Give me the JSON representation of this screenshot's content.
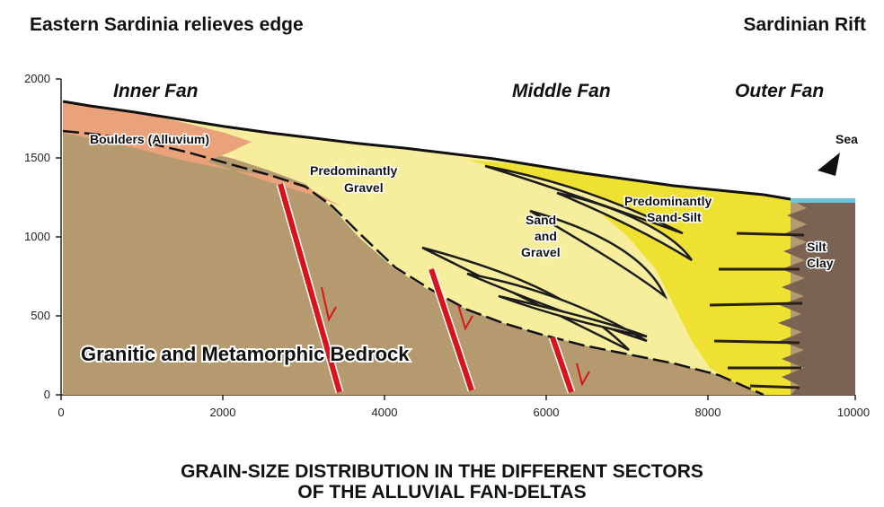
{
  "header": {
    "left_title": "Eastern Sardinia relieves edge",
    "right_title": "Sardinian Rift"
  },
  "zones": {
    "inner": "Inner Fan",
    "middle": "Middle Fan",
    "outer": "Outer Fan"
  },
  "labels": {
    "boulders": "Boulders (Alluvium)",
    "gravel_1": "Predominantly",
    "gravel_2": "Gravel",
    "sandgravel_1": "Sand",
    "sandgravel_2": "and",
    "sandgravel_3": "Gravel",
    "sandsilt_1": "Predominantly",
    "sandsilt_2": "Sand-Silt",
    "siltclay_1": "Silt",
    "siltclay_2": "Clay",
    "sea": "Sea",
    "bedrock": "Granitic and Metamorphic Bedrock"
  },
  "axes": {
    "y_ticks": [
      "0",
      "500",
      "1000",
      "1500",
      "2000"
    ],
    "x_ticks": [
      "0",
      "2000",
      "4000",
      "6000",
      "8000",
      "10000"
    ]
  },
  "caption": {
    "line1": "GRAIN-SIZE DISTRIBUTION IN THE DIFFERENT SECTORS",
    "line2": "OF THE ALLUVIAL FAN-DELTAS"
  },
  "colors": {
    "bedrock": "#b59a70",
    "boulders": "#e9a27a",
    "gravel": "#f6ee9c",
    "sand_silt": "#efe132",
    "silt_clay": "#7a6352",
    "sea": "#6cc4dc",
    "fault": "#d7141e"
  }
}
